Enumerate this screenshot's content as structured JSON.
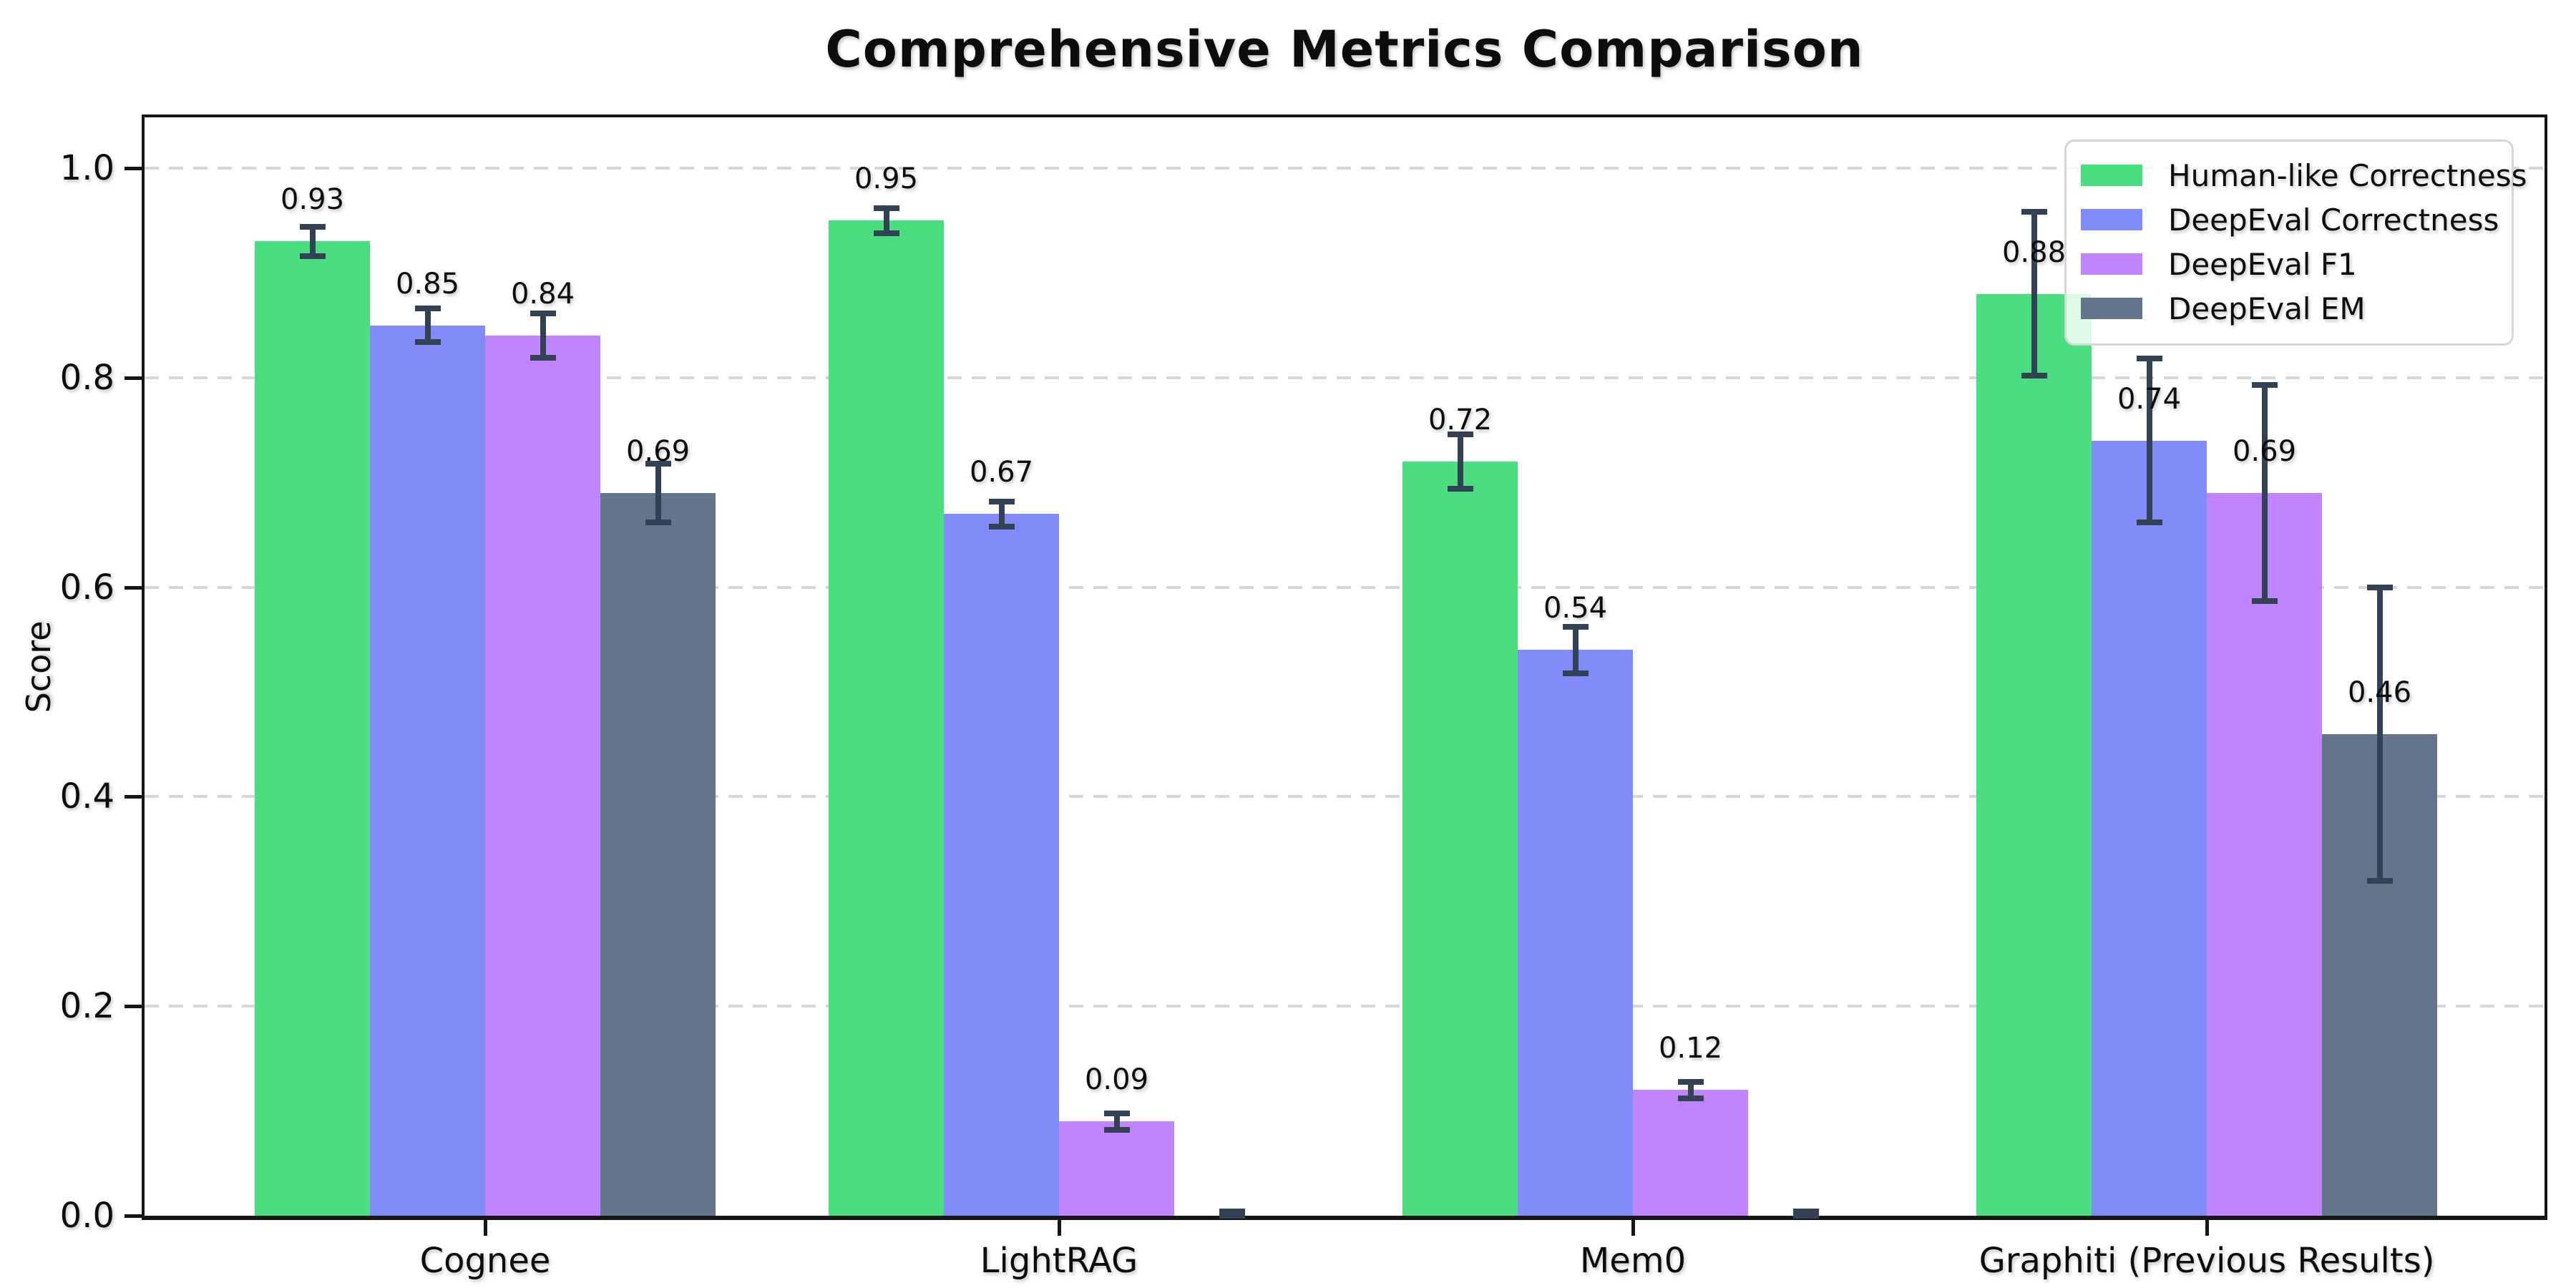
{
  "chart_data": {
    "type": "bar",
    "title": "Comprehensive Metrics Comparison",
    "ylabel": "Score",
    "xlabel": "",
    "categories": [
      "Cognee",
      "LightRAG",
      "Mem0",
      "Graphiti (Previous Results)"
    ],
    "series": [
      {
        "name": "Human-like Correctness",
        "color": "#4ade80",
        "values": [
          0.93,
          0.95,
          0.72,
          0.88
        ],
        "errors": [
          0.014,
          0.012,
          0.026,
          0.078
        ],
        "labels": [
          "0.93",
          "0.95",
          "0.72",
          "0.88"
        ]
      },
      {
        "name": "DeepEval Correctness",
        "color": "#818cf8",
        "values": [
          0.85,
          0.67,
          0.54,
          0.74
        ],
        "errors": [
          0.016,
          0.012,
          0.022,
          0.078
        ],
        "labels": [
          "0.85",
          "0.67",
          "0.54",
          "0.74"
        ]
      },
      {
        "name": "DeepEval F1",
        "color": "#c084fc",
        "values": [
          0.84,
          0.09,
          0.12,
          0.69
        ],
        "errors": [
          0.021,
          0.008,
          0.008,
          0.103
        ],
        "labels": [
          "0.84",
          "0.09",
          "0.12",
          "0.69"
        ]
      },
      {
        "name": "DeepEval EM",
        "color": "#64748b",
        "values": [
          0.69,
          0.0,
          0.0,
          0.46
        ],
        "errors": [
          0.028,
          0.004,
          0.004,
          0.14
        ],
        "labels": [
          "0.69",
          "",
          "",
          "0.46"
        ]
      }
    ],
    "yticks": [
      {
        "value": 0.0,
        "label": "0.0"
      },
      {
        "value": 0.2,
        "label": "0.2"
      },
      {
        "value": 0.4,
        "label": "0.4"
      },
      {
        "value": 0.6,
        "label": "0.6"
      },
      {
        "value": 0.8,
        "label": "0.8"
      },
      {
        "value": 1.0,
        "label": "1.0"
      }
    ],
    "ylim": [
      0,
      1.05
    ],
    "grid": {
      "axis": "y",
      "linestyle": "dashed",
      "color": "#d7d7d7"
    },
    "legend": {
      "location": "upper right"
    },
    "errorbar_color": "#334155",
    "background": "#ffffff",
    "spine_color": "#161616"
  }
}
